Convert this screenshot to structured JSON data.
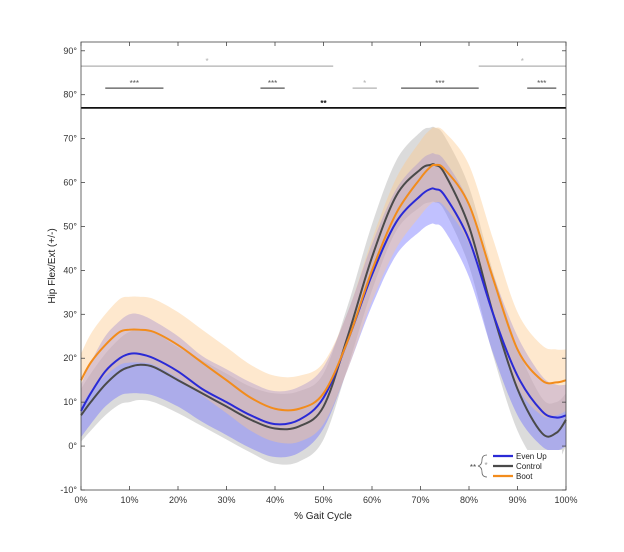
{
  "chart_data": {
    "type": "line",
    "title": "",
    "xlabel": "% Gait Cycle",
    "ylabel": "Hip Flex/Ext (+/-)",
    "xlim": [
      0,
      100
    ],
    "ylim": [
      -10,
      92
    ],
    "x_ticks": [
      "0%",
      "10%",
      "20%",
      "30%",
      "40%",
      "50%",
      "60%",
      "70%",
      "80%",
      "90%",
      "100%"
    ],
    "x_tick_values": [
      0,
      10,
      20,
      30,
      40,
      50,
      60,
      70,
      80,
      90,
      100
    ],
    "y_ticks": [
      "-10°",
      "0°",
      "10°",
      "20°",
      "30°",
      "40°",
      "50°",
      "60°",
      "70°",
      "80°",
      "90°"
    ],
    "y_tick_values": [
      -10,
      0,
      10,
      20,
      30,
      40,
      50,
      60,
      70,
      80,
      90
    ],
    "x": [
      0,
      2,
      5,
      8,
      10,
      12,
      15,
      20,
      25,
      30,
      35,
      40,
      45,
      50,
      55,
      60,
      65,
      70,
      72,
      73,
      75,
      80,
      85,
      90,
      95,
      98,
      100
    ],
    "series": [
      {
        "name": "Even Up",
        "color": "#2a2ad6",
        "band_color": "#6b6bff",
        "values": [
          8,
          12,
          17,
          20,
          21,
          21,
          20,
          17,
          13,
          10,
          7,
          5,
          6,
          11,
          24,
          39,
          51,
          57,
          58.5,
          58.5,
          57,
          47,
          30,
          16,
          8,
          6.5,
          7
        ],
        "sd": [
          6,
          7,
          8,
          8.5,
          9,
          9,
          8.5,
          8,
          7.5,
          7.5,
          7.5,
          7.5,
          7.5,
          7,
          6.5,
          7,
          7.5,
          8,
          8,
          8,
          8,
          8.5,
          9,
          9,
          8,
          7.5,
          7
        ]
      },
      {
        "name": "Control",
        "color": "#4a4a4a",
        "band_color": "#a9a9a9",
        "values": [
          7,
          10,
          14,
          17,
          18,
          18.5,
          18,
          15,
          12,
          9,
          6,
          4,
          4.5,
          9,
          25,
          43,
          57,
          63,
          64,
          64,
          62,
          50,
          30,
          13,
          3,
          3,
          6
        ],
        "sd": [
          6,
          6.5,
          7,
          7.5,
          8,
          8,
          8,
          7.5,
          7.5,
          7.5,
          7.5,
          8,
          8,
          7.5,
          7,
          7.5,
          8,
          8.5,
          8.5,
          8.5,
          8.5,
          9,
          9.5,
          9.5,
          8,
          7,
          6
        ]
      },
      {
        "name": "Boot",
        "color": "#f28c1c",
        "band_color": "#fcc98a",
        "values": [
          15,
          19,
          23,
          26,
          26.5,
          26.5,
          26,
          23,
          19,
          15,
          11,
          8.5,
          8.5,
          12,
          24,
          40,
          53,
          61,
          63.5,
          64,
          63,
          55,
          38,
          22,
          15,
          14.5,
          15
        ],
        "sd": [
          6,
          6.5,
          7,
          7.5,
          7.5,
          7.5,
          7.5,
          7.5,
          7.5,
          7.5,
          7.5,
          7.5,
          7.5,
          7,
          6.5,
          7,
          8,
          8.5,
          8.5,
          8.5,
          8.5,
          9,
          9,
          8.5,
          8,
          7.5,
          7
        ]
      }
    ],
    "significance": [
      {
        "label": "*",
        "x_start": 0,
        "x_end": 52,
        "y": 86.5,
        "color": "#b0b0b0"
      },
      {
        "label": "*",
        "x_start": 82,
        "x_end": 100,
        "y": 86.5,
        "color": "#b0b0b0"
      },
      {
        "label": "***",
        "x_start": 5,
        "x_end": 17,
        "y": 81.5,
        "color": "#555555"
      },
      {
        "label": "***",
        "x_start": 37,
        "x_end": 42,
        "y": 81.5,
        "color": "#555555"
      },
      {
        "label": "*",
        "x_start": 56,
        "x_end": 61,
        "y": 81.5,
        "color": "#b0b0b0"
      },
      {
        "label": "***",
        "x_start": 66,
        "x_end": 82,
        "y": 81.5,
        "color": "#555555"
      },
      {
        "label": "***",
        "x_start": 92,
        "x_end": 98,
        "y": 81.5,
        "color": "#555555"
      },
      {
        "label": "**",
        "x_start": 0,
        "x_end": 100,
        "y": 77,
        "color": "#111111"
      }
    ],
    "legend": {
      "placement": "bottom-right",
      "entries": [
        "Even Up",
        "Control",
        "Boot"
      ],
      "bracket_labels": [
        "**",
        "*"
      ]
    }
  }
}
